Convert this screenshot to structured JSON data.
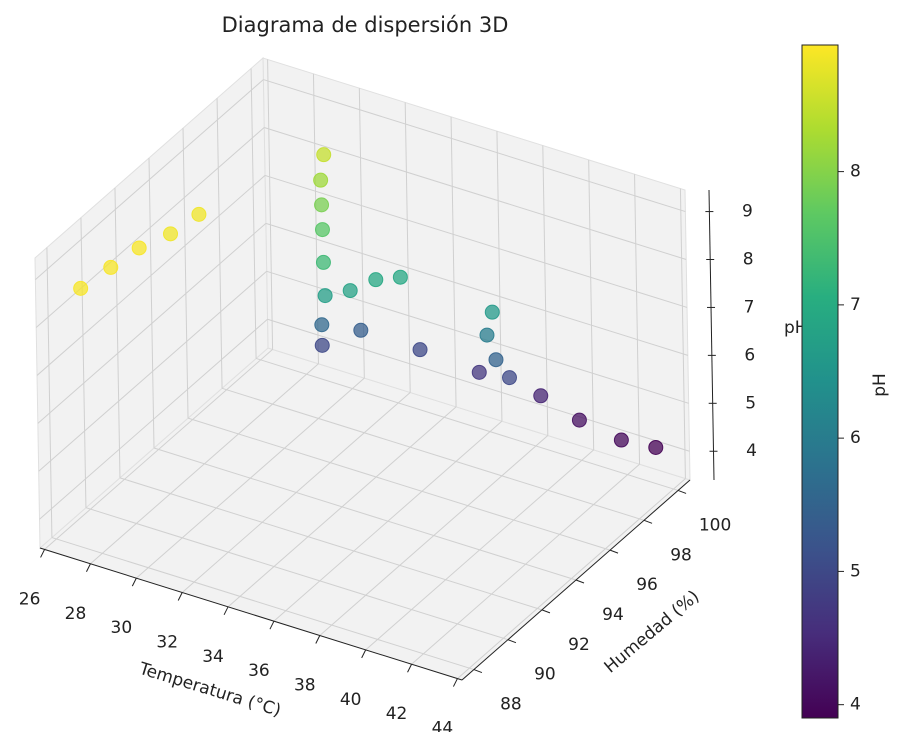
{
  "chart_data": {
    "type": "scatter3d",
    "title": "Diagrama de dispersión 3D",
    "xlabel": "Temperatura (°C)",
    "ylabel": "Humedad (%)",
    "zlabel": "pH",
    "colorbar_label": "pH",
    "colormap": "viridis",
    "x": [
      27.4,
      27.6,
      27.8,
      28.2,
      28.4,
      29.6,
      29.9,
      30.3,
      30.7,
      31.4,
      31.6,
      32.4,
      33.0,
      33.7,
      30.6,
      30.3,
      31.7,
      33.6,
      35.8,
      38.1,
      39.7,
      41.6,
      42.8,
      37.4,
      37.0,
      37.3,
      37.5
    ],
    "y": [
      87.8,
      89.3,
      90.7,
      92.0,
      93.4,
      99.1,
      98.5,
      98.0,
      97.5,
      96.6,
      96.4,
      96.8,
      97.5,
      98.0,
      97.5,
      97.9,
      98.3,
      99.2,
      99.7,
      100.2,
      100.3,
      100.2,
      100.6,
      98.4,
      98.6,
      98.7,
      99.2
    ],
    "z": [
      8.9,
      8.9,
      8.9,
      8.85,
      8.85,
      8.5,
      8.2,
      7.9,
      7.6,
      7.3,
      6.7,
      6.8,
      6.9,
      6.9,
      5.6,
      5.0,
      5.4,
      5.0,
      4.7,
      4.4,
      4.1,
      4.0,
      3.9,
      6.6,
      6.0,
      5.5,
      5.0
    ],
    "xlim": [
      25.8,
      44.2
    ],
    "ylim": [
      87.3,
      100.7
    ],
    "zlim": [
      3.4,
      9.45
    ],
    "xticks": [
      26,
      28,
      30,
      32,
      34,
      36,
      38,
      40,
      42,
      44
    ],
    "yticks": [
      88,
      90,
      92,
      94,
      96,
      98,
      100
    ],
    "zticks": [
      4,
      5,
      6,
      7,
      8,
      9
    ],
    "clim": [
      3.9,
      8.95
    ],
    "cticks": [
      4,
      5,
      6,
      7,
      8
    ],
    "grid": true
  }
}
